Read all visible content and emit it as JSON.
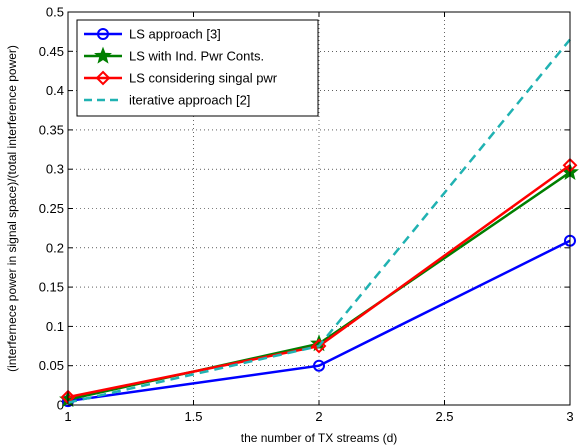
{
  "chart_data": {
    "type": "line",
    "xlabel": "the number of TX streams (d)",
    "ylabel": "(interfernece power in signal space)/(total interference power)",
    "xlim": [
      1,
      3
    ],
    "ylim": [
      0,
      0.5
    ],
    "xticks": [
      1,
      1.5,
      2,
      2.5,
      3
    ],
    "xtick_labels": [
      "1",
      "1.5",
      "2",
      "2.5",
      "3"
    ],
    "yticks": [
      0,
      0.05,
      0.1,
      0.15,
      0.2,
      0.25,
      0.3,
      0.35,
      0.4,
      0.45,
      0.5
    ],
    "ytick_labels": [
      "0",
      "0.05",
      "0.1",
      "0.15",
      "0.2",
      "0.25",
      "0.3",
      "0.35",
      "0.4",
      "0.45",
      "0.5"
    ],
    "grid": true,
    "legend_position": "top-left",
    "x": [
      1,
      2,
      3
    ],
    "series": [
      {
        "name": "LS approach [3]",
        "values": [
          0.005,
          0.05,
          0.209
        ],
        "color": "#0000ff",
        "marker": "circle",
        "dashed": false
      },
      {
        "name": "LS with Ind. Pwr Conts.",
        "values": [
          0.007,
          0.078,
          0.296
        ],
        "color": "#007f00",
        "marker": "star",
        "dashed": false
      },
      {
        "name": "LS considering singal pwr",
        "values": [
          0.01,
          0.075,
          0.305
        ],
        "color": "#ff0000",
        "marker": "diamond",
        "dashed": false
      },
      {
        "name": "iterative approach [2]",
        "values": [
          0.003,
          0.075,
          0.465
        ],
        "color": "#20b2b2",
        "marker": "none",
        "dashed": true
      }
    ]
  }
}
